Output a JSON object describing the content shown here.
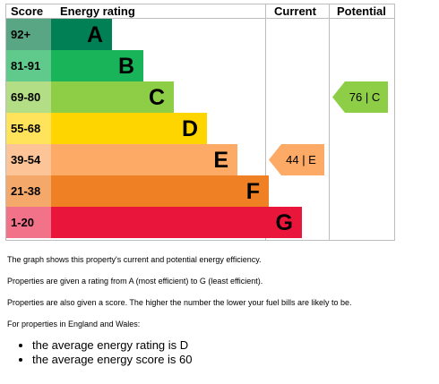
{
  "table": {
    "headers": {
      "score": "Score",
      "rating": "Energy rating",
      "current": "Current",
      "potential": "Potential"
    },
    "bands": [
      {
        "range": "92+",
        "letter": "A",
        "color": "#008054",
        "score_bg": "#59a684",
        "length": 0.22
      },
      {
        "range": "81-91",
        "letter": "B",
        "color": "#19b459",
        "score_bg": "#5fca8b",
        "length": 0.33
      },
      {
        "range": "69-80",
        "letter": "C",
        "color": "#8dce46",
        "score_bg": "#b3de85",
        "length": 0.44
      },
      {
        "range": "55-68",
        "letter": "D",
        "color": "#ffd500",
        "score_bg": "#ffe35a",
        "length": 0.56
      },
      {
        "range": "39-54",
        "letter": "E",
        "color": "#fcaa65",
        "score_bg": "#fdc597",
        "length": 0.67
      },
      {
        "range": "21-38",
        "letter": "F",
        "color": "#ef8023",
        "score_bg": "#f4a96b",
        "length": 0.78
      },
      {
        "range": "1-20",
        "letter": "G",
        "color": "#e9153b",
        "score_bg": "#f17289",
        "length": 0.9
      }
    ],
    "current": {
      "score": "44",
      "letter": "E",
      "band": "E",
      "color": "#fcaa65",
      "label": "44 | E"
    },
    "potential": {
      "score": "76",
      "letter": "C",
      "band": "C",
      "color": "#8dce46",
      "label": "76 | C"
    }
  },
  "text": {
    "p1": "The graph shows this property's current and potential energy efficiency.",
    "p2": "Properties are given a rating from A (most efficient) to G (least efficient).",
    "p3": "Properties are also given a score. The higher the number the lower your fuel bills are likely to be.",
    "p4": "For properties in England and Wales:",
    "bullets": [
      "the average energy rating is D",
      "the average energy score is 60"
    ]
  }
}
